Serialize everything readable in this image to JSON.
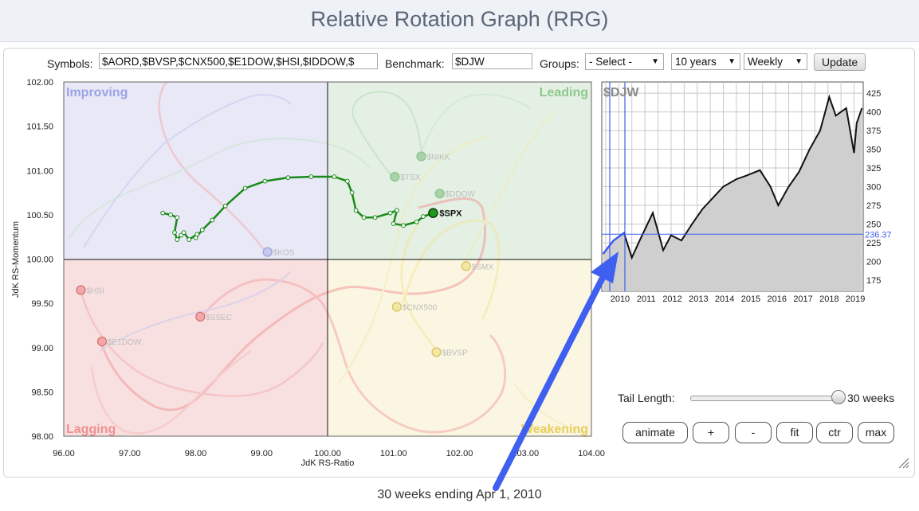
{
  "page": {
    "title": "Relative Rotation Graph (RRG)"
  },
  "toolbar": {
    "symbols_label": "Symbols:",
    "symbols_value": "$AORD,$BVSP,$CNX500,$E1DOW,$HSI,$IDDOW,$",
    "benchmark_label": "Benchmark:",
    "benchmark_value": "$DJW",
    "groups_label": "Groups:",
    "groups_value": "- Select -",
    "period_value": "10 years",
    "frequency_value": "Weekly",
    "update_label": "Update"
  },
  "rrg": {
    "quadrants": {
      "improving": "Improving",
      "leading": "Leading",
      "lagging": "Lagging",
      "weakening": "Weakening"
    },
    "x_axis_label": "JdK RS-Ratio",
    "y_axis_label": "JdK RS-Momentum",
    "x_ticks": [
      "96.00",
      "97.00",
      "98.00",
      "99.00",
      "100.00",
      "101.00",
      "102.00",
      "103.00",
      "104.00"
    ],
    "y_ticks": [
      "102.00",
      "101.50",
      "101.00",
      "100.50",
      "100.00",
      "99.50",
      "99.00",
      "98.50",
      "98.00"
    ],
    "symbols": [
      "$SPX",
      "$NIKK",
      "$TSX",
      "$DDOW",
      "$SMX",
      "$CNX500",
      "$BVSP",
      "$KOS",
      "$HSI",
      "$SSEC",
      "$E1DOW"
    ]
  },
  "chart_data": {
    "type": "scatter",
    "x_label": "JdK RS-Ratio",
    "y_label": "JdK RS-Momentum",
    "xlim": [
      96,
      104
    ],
    "ylim": [
      98,
      102
    ],
    "center": [
      100,
      100
    ],
    "highlighted_series": {
      "name": "$SPX",
      "tail_x": [
        97.5,
        97.62,
        97.72,
        97.68,
        97.72,
        97.78,
        97.82,
        97.9,
        98.02,
        98.0,
        98.1,
        98.25,
        98.45,
        98.75,
        99.05,
        99.4,
        99.75,
        100.1,
        100.3,
        100.37,
        100.43,
        100.55,
        100.72,
        100.95,
        101.05,
        101.0,
        101.15,
        101.35,
        101.45,
        101.6
      ],
      "tail_y": [
        100.52,
        100.5,
        100.47,
        100.3,
        100.22,
        100.27,
        100.3,
        100.22,
        100.28,
        100.24,
        100.33,
        100.44,
        100.6,
        100.8,
        100.88,
        100.92,
        100.93,
        100.93,
        100.88,
        100.75,
        100.55,
        100.47,
        100.47,
        100.52,
        100.55,
        100.4,
        100.38,
        100.42,
        100.48,
        100.52
      ]
    },
    "series_heads": [
      {
        "name": "$NIKK",
        "x": 101.42,
        "y": 101.16
      },
      {
        "name": "$TSX",
        "x": 101.02,
        "y": 100.93
      },
      {
        "name": "$DDOW",
        "x": 101.7,
        "y": 100.74
      },
      {
        "name": "$SMX",
        "x": 102.1,
        "y": 99.92
      },
      {
        "name": "$CNX500",
        "x": 101.05,
        "y": 99.46
      },
      {
        "name": "$BVSP",
        "x": 101.65,
        "y": 98.95
      },
      {
        "name": "$KOS",
        "x": 99.09,
        "y": 100.08
      },
      {
        "name": "$HSI",
        "x": 96.26,
        "y": 99.65
      },
      {
        "name": "$SSEC",
        "x": 98.07,
        "y": 99.35
      },
      {
        "name": "$E1DOW",
        "x": 96.58,
        "y": 99.07
      }
    ]
  },
  "price_chart": {
    "symbol": "$DJW",
    "x_ticks": [
      "2010",
      "2011",
      "2012",
      "2013",
      "2014",
      "2015",
      "2016",
      "2017",
      "2018",
      "2019"
    ],
    "y_ticks": [
      "425",
      "400",
      "375",
      "350",
      "325",
      "300",
      "275",
      "250",
      "225",
      "200",
      "175"
    ],
    "current_value": "236.37",
    "y_range": [
      160,
      440
    ],
    "years": [
      2009.4,
      2009.8,
      2010.2,
      2010.5,
      2010.8,
      2011.3,
      2011.7,
      2012.0,
      2012.4,
      2012.8,
      2013.2,
      2013.6,
      2014.0,
      2014.5,
      2014.9,
      2015.4,
      2015.8,
      2016.1,
      2016.5,
      2016.9,
      2017.3,
      2017.7,
      2018.05,
      2018.3,
      2018.7,
      2019.0,
      2019.1,
      2019.3
    ],
    "values": [
      210,
      228,
      238,
      205,
      228,
      265,
      215,
      235,
      228,
      250,
      270,
      285,
      300,
      310,
      315,
      322,
      300,
      275,
      300,
      320,
      350,
      375,
      420,
      395,
      405,
      345,
      385,
      405
    ]
  },
  "controls": {
    "tail_length_label": "Tail Length:",
    "tail_length_value": "30 weeks",
    "tail_length_fraction": 1.0,
    "animate": "animate",
    "plus": "+",
    "minus": "-",
    "fit": "fit",
    "ctr": "ctr",
    "max": "max"
  },
  "caption": "30 weeks ending Apr 1, 2010",
  "colors": {
    "improving_bg": "#e8e8f7",
    "leading_bg": "#e3f0e3",
    "lagging_bg": "#f8e0e0",
    "weakening_bg": "#fbf6e2",
    "spx_line": "#1a8a1a",
    "arrow": "#3f5ff0"
  }
}
